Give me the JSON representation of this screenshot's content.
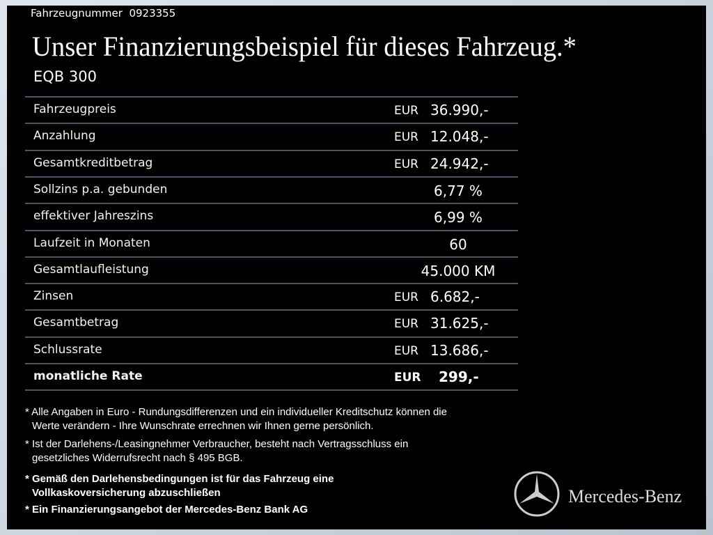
{
  "header": {
    "vehicle_number_label": "Fahrzeugnummer",
    "vehicle_number": "0923355",
    "title": "Unser Finanzierungsbeispiel für dieses Fahrzeug.*",
    "model": "EQB 300"
  },
  "table": {
    "rows": [
      {
        "label": "Fahrzeugpreis",
        "currency": "EUR",
        "value": "36.990,-"
      },
      {
        "label": "Anzahlung",
        "currency": "EUR",
        "value": "12.048,-"
      },
      {
        "label": "Gesamtkreditbetrag",
        "currency": "EUR",
        "value": "24.942,-"
      },
      {
        "label": "Sollzins p.a. gebunden",
        "value": "6,77 %"
      },
      {
        "label": "effektiver Jahreszins",
        "value": "6,99 %"
      },
      {
        "label": "Laufzeit in Monaten",
        "value": "60"
      },
      {
        "label": "Gesamtlaufleistung",
        "value": "45.000 KM"
      },
      {
        "label": "Zinsen",
        "currency": "EUR",
        "value": "6.682,-"
      },
      {
        "label": "Gesamtbetrag",
        "currency": "EUR",
        "value": "31.625,-"
      },
      {
        "label": "Schlussrate",
        "currency": "EUR",
        "value": "13.686,-"
      },
      {
        "label": "monatliche Rate",
        "currency": "EUR",
        "value": "299,-"
      }
    ]
  },
  "footnotes": [
    {
      "lines": [
        "* Alle Angaben in Euro - Rundungsdifferenzen und ein individueller Kreditschutz können die",
        "Werte verändern - Ihre Wunschrate errechnen wir Ihnen gerne persönlich."
      ]
    },
    {
      "lines": [
        "* Ist der Darlehens-/Leasingnehmer Verbraucher, besteht nach Vertragsschluss ein",
        "gesetzliches Widerrufsrecht nach § 495 BGB."
      ]
    },
    {
      "lines": [
        "* Gemäß den Darlehensbedingungen ist für das Fahrzeug eine",
        "Vollkaskoversicherung abzuschließen"
      ]
    },
    {
      "lines": [
        "* Ein Finanzierungsangebot der Mercedes-Benz Bank AG"
      ]
    }
  ],
  "brand": "Mercedes-Benz"
}
